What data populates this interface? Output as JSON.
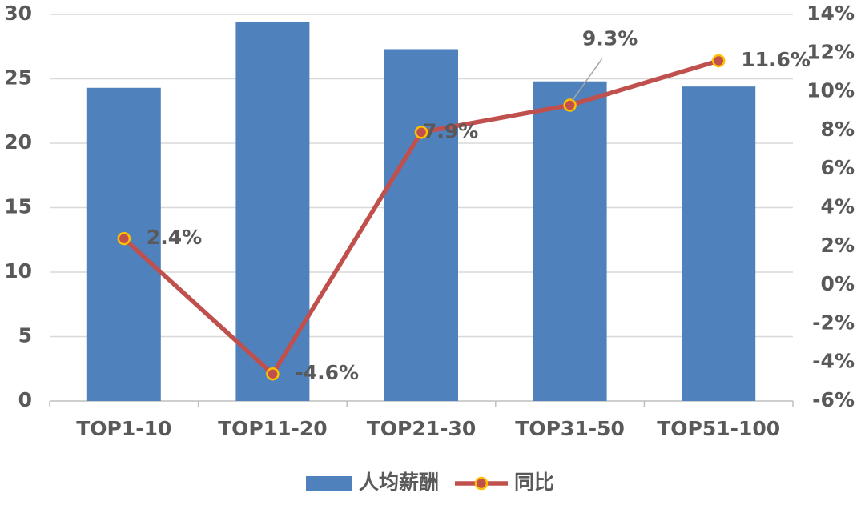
{
  "chart_data": {
    "type": "bar",
    "categories": [
      "TOP1-10",
      "TOP11-20",
      "TOP21-30",
      "TOP31-50",
      "TOP51-100"
    ],
    "series": [
      {
        "name": "人均薪酬",
        "type": "bar",
        "color": "#4f81bd",
        "values": [
          24.3,
          29.4,
          27.3,
          24.8,
          24.4
        ]
      },
      {
        "name": "同比",
        "type": "line",
        "axis": "y2",
        "color": "#c0504d",
        "marker_color": "#ffc000",
        "values": [
          2.4,
          -4.6,
          7.9,
          9.3,
          11.6
        ],
        "value_labels": [
          "2.4%",
          "-4.6%",
          "7.9%",
          "9.3%",
          "11.6%"
        ]
      }
    ],
    "ylim": [
      0,
      30
    ],
    "yticks": [
      0,
      5,
      10,
      15,
      20,
      25,
      30
    ],
    "y2lim": [
      -6,
      14
    ],
    "y2ticks": [
      {
        "value": -6,
        "label": "-6%"
      },
      {
        "value": -4,
        "label": "-4%"
      },
      {
        "value": -2,
        "label": "-2%"
      },
      {
        "value": 0,
        "label": "0%"
      },
      {
        "value": 2,
        "label": "2%"
      },
      {
        "value": 4,
        "label": "4%"
      },
      {
        "value": 6,
        "label": "6%"
      },
      {
        "value": 8,
        "label": "8%"
      },
      {
        "value": 10,
        "label": "10%"
      },
      {
        "value": 12,
        "label": "12%"
      },
      {
        "value": 14,
        "label": "14%"
      }
    ],
    "grid": true,
    "legend": "bottom"
  }
}
